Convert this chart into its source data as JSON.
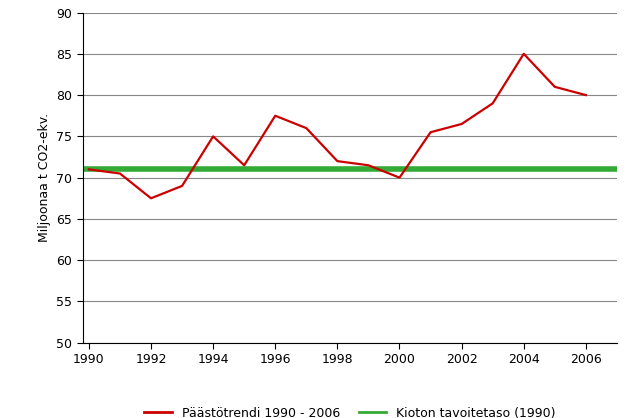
{
  "years": [
    1990,
    1991,
    1992,
    1993,
    1994,
    1995,
    1996,
    1997,
    1998,
    1999,
    2000,
    2001,
    2002,
    2003,
    2004,
    2005,
    2006
  ],
  "emissions": [
    71.0,
    70.5,
    67.5,
    69.0,
    75.0,
    71.5,
    77.5,
    76.0,
    72.0,
    71.5,
    70.0,
    75.5,
    76.5,
    79.0,
    85.0,
    81.0,
    80.0
  ],
  "kyoto_level": 71.0,
  "emission_color": "#cc0000",
  "kyoto_color": "#33aa33",
  "ylabel": "Miljoonaa t CO2-ekv.",
  "ylim": [
    50,
    90
  ],
  "yticks": [
    50,
    55,
    60,
    65,
    70,
    75,
    80,
    85,
    90
  ],
  "xlim_min": 1989.8,
  "xlim_max": 2007.0,
  "xticks": [
    1990,
    1992,
    1994,
    1996,
    1998,
    2000,
    2002,
    2004,
    2006
  ],
  "legend_emission": "Päästötrendi 1990 - 2006",
  "legend_kyoto": "Kioton tavoitetaso (1990)",
  "background_color": "#ffffff",
  "grid_color": "#888888",
  "linewidth": 1.6,
  "kyoto_linewidth": 4.0
}
